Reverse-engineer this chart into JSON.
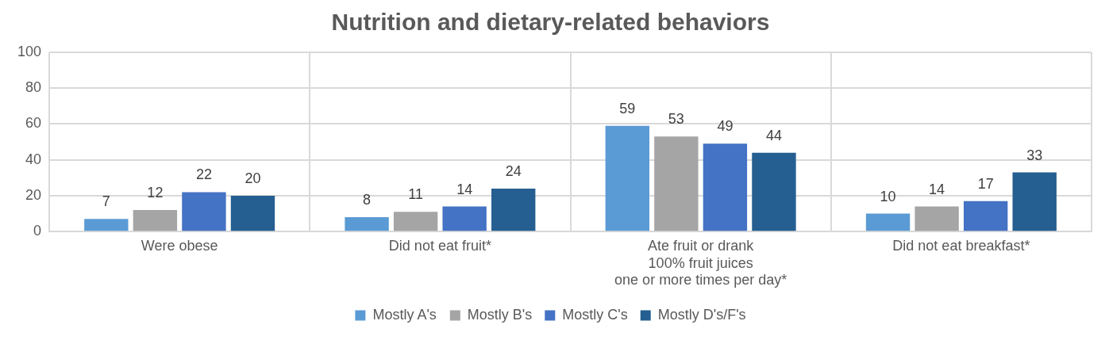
{
  "chart_data": {
    "type": "bar",
    "title": "Nutrition and dietary-related behaviors",
    "categories": [
      "Were obese",
      "Did not eat fruit*",
      "Ate fruit or drank\n100% fruit juices\none or more times per day*",
      "Did not eat breakfast*"
    ],
    "series": [
      {
        "name": "Mostly A's",
        "color": "#5b9bd5",
        "values": [
          7,
          8,
          59,
          10
        ]
      },
      {
        "name": "Mostly B's",
        "color": "#a5a5a5",
        "values": [
          12,
          11,
          53,
          14
        ]
      },
      {
        "name": "Mostly C's",
        "color": "#4472c4",
        "values": [
          22,
          14,
          49,
          17
        ]
      },
      {
        "name": "Mostly D's/F's",
        "color": "#255e91",
        "values": [
          20,
          24,
          44,
          33
        ]
      }
    ],
    "ylim": [
      0,
      100
    ],
    "yticks": [
      0,
      20,
      40,
      60,
      80,
      100
    ],
    "grid": true,
    "legend": "bottom",
    "data_labels": true
  }
}
